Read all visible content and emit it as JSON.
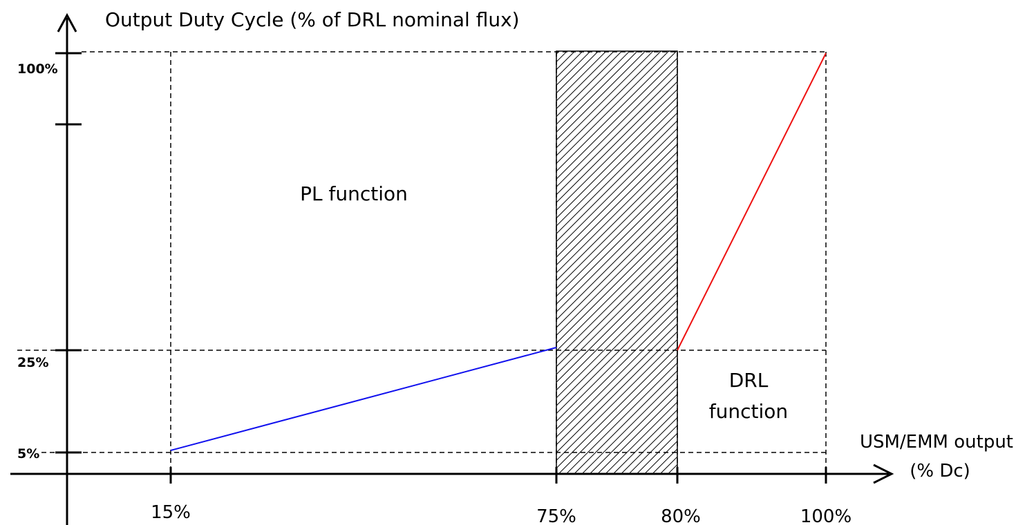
{
  "y_axis": {
    "label": "Output Duty Cycle (% of DRL nominal flux)",
    "ticks": [
      "100%",
      "25%",
      "5%"
    ]
  },
  "x_axis": {
    "label": [
      "USM/EMM output",
      "(% Dc)"
    ],
    "ticks": [
      "15%",
      "75%",
      "80%",
      "100%"
    ]
  },
  "regions": {
    "pl": "PL function",
    "drl": [
      "DRL",
      "function"
    ]
  }
}
